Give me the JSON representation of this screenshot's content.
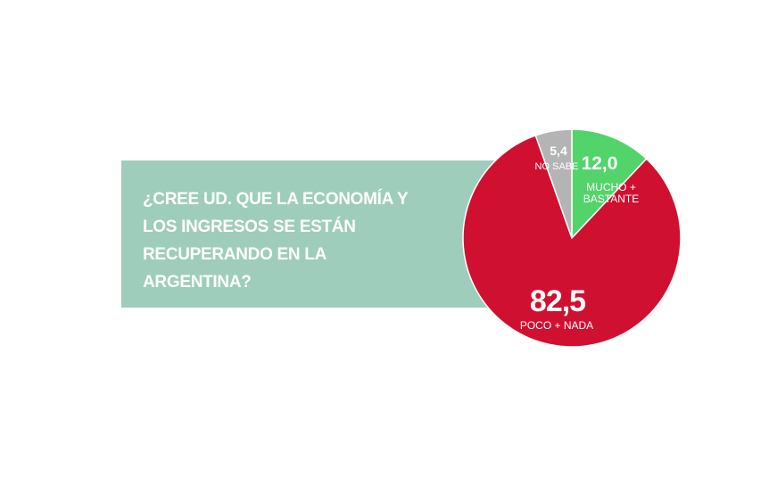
{
  "chart_data": {
    "type": "pie",
    "title": "¿CREE UD. QUE LA ECONOMÍA Y LOS INGRESOS SE ESTÁN RECUPERANDO EN LA ARGENTINA?",
    "categories": [
      "MUCHO + BASTANTE",
      "POCO + NADA",
      "NO SABE"
    ],
    "values": [
      12.0,
      82.5,
      5.4
    ],
    "value_labels": [
      "12,0",
      "82,5",
      "5,4"
    ],
    "colors": [
      "#52d46a",
      "#d01030",
      "#b4b4b4"
    ]
  }
}
